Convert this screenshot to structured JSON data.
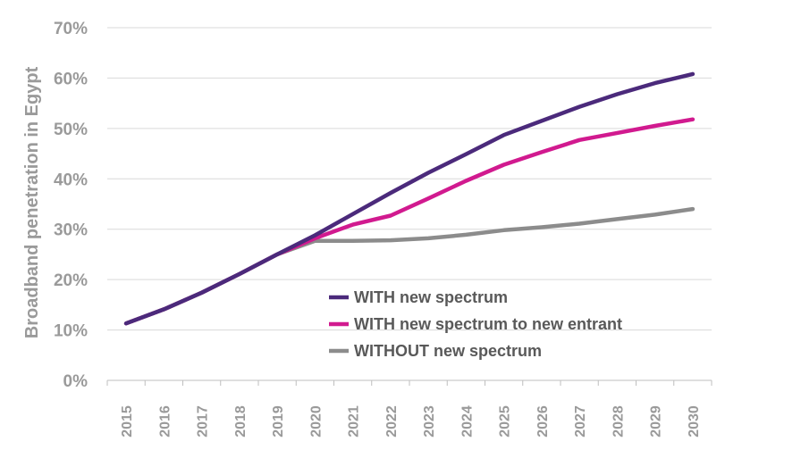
{
  "chart_data": {
    "type": "line",
    "title": "",
    "xlabel": "",
    "ylabel": "Broadband penetration in Egypt",
    "ylim": [
      0,
      70
    ],
    "yticks": [
      "0%",
      "10%",
      "20%",
      "30%",
      "40%",
      "50%",
      "60%",
      "70%"
    ],
    "ytick_values": [
      0,
      10,
      20,
      30,
      40,
      50,
      60,
      70
    ],
    "categories": [
      "2015",
      "2016",
      "2017",
      "2018",
      "2019",
      "2020",
      "2021",
      "2022",
      "2023",
      "2024",
      "2025",
      "2026",
      "2027",
      "2028",
      "2029",
      "2030"
    ],
    "grid": true,
    "legend_position": "bottom-center",
    "series": [
      {
        "name": "WITH new spectrum",
        "color": "#4b2a7b",
        "values": [
          11.3,
          14.1,
          17.4,
          21.1,
          25.0,
          28.8,
          33.0,
          37.2,
          41.2,
          44.9,
          48.7,
          51.5,
          54.3,
          56.8,
          59.0,
          60.8
        ]
      },
      {
        "name": "WITH new spectrum to new entrant",
        "color": "#d11a8f",
        "values": [
          11.3,
          14.1,
          17.4,
          21.1,
          25.0,
          28.2,
          30.9,
          32.7,
          36.1,
          39.6,
          42.8,
          45.3,
          47.7,
          49.1,
          50.5,
          51.8
        ]
      },
      {
        "name": "WITHOUT new spectrum",
        "color": "#8c8c8c",
        "values": [
          11.3,
          14.1,
          17.4,
          21.1,
          25.0,
          27.7,
          27.7,
          27.8,
          28.2,
          28.9,
          29.8,
          30.4,
          31.1,
          32.0,
          32.9,
          34.0
        ]
      }
    ]
  }
}
